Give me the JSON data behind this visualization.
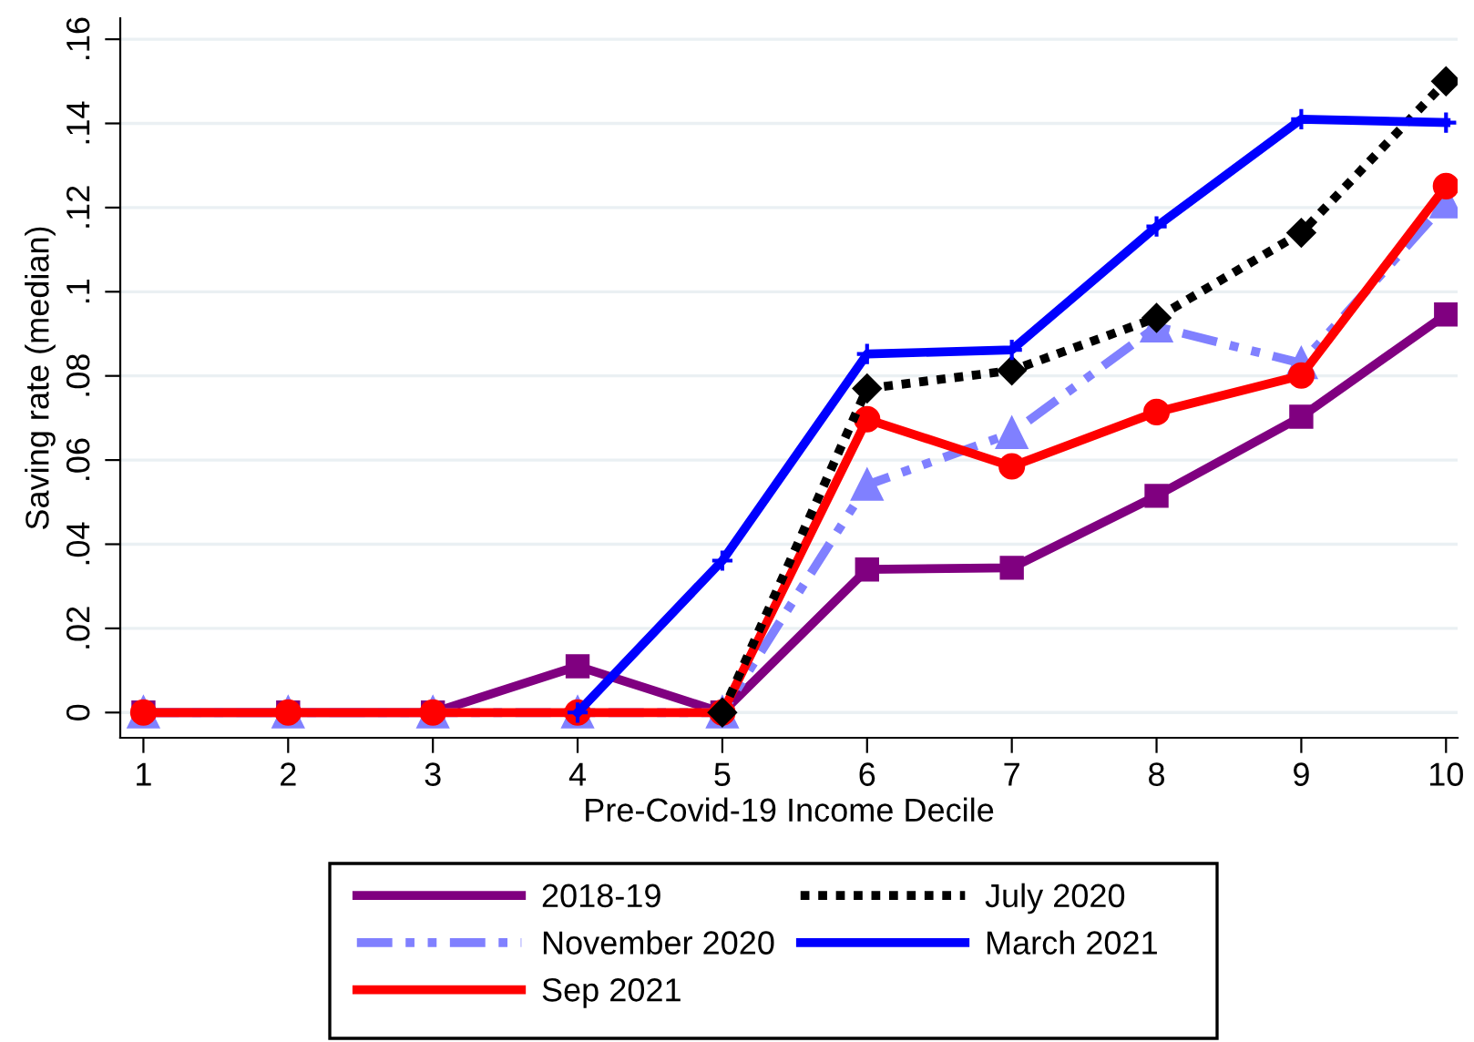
{
  "chart_data": {
    "type": "line",
    "xlabel": "Pre-Covid-19 Income Decile",
    "ylabel": "Saving rate (median)",
    "x": [
      1,
      2,
      3,
      4,
      5,
      6,
      7,
      8,
      9,
      10
    ],
    "series": [
      {
        "name": "2018-19",
        "color": "#800080",
        "marker": "square",
        "line_style": "solid",
        "values": [
          0,
          0,
          0,
          0.011,
          0,
          0.034,
          0.0344,
          0.0515,
          0.0703,
          0.0946
        ]
      },
      {
        "name": "November 2020",
        "color": "#8080ff",
        "marker": "triangle",
        "line_style": "dashdot",
        "values": [
          0,
          0,
          0,
          0,
          0,
          0.0541,
          0.0664,
          0.0917,
          0.083,
          0.1212
        ]
      },
      {
        "name": "Sep 2021",
        "color": "#ff0000",
        "marker": "circle",
        "line_style": "solid",
        "values": [
          0,
          0,
          0,
          0,
          0,
          0.0697,
          0.0585,
          0.0714,
          0.0801,
          0.1251
        ]
      },
      {
        "name": "July 2020",
        "color": "#000000",
        "marker": "diamond",
        "line_style": "dotted",
        "values": [
          null,
          null,
          null,
          null,
          0,
          0.077,
          0.0813,
          0.0938,
          0.114,
          0.15
        ]
      },
      {
        "name": "March 2021",
        "color": "#0000ff",
        "marker": "cross",
        "line_style": "solid",
        "values": [
          null,
          null,
          null,
          0,
          0.0361,
          0.0852,
          0.0862,
          0.1155,
          0.141,
          0.1402
        ]
      }
    ],
    "xlim": [
      0.84,
      10.08
    ],
    "ylim": [
      -0.006,
      0.165
    ],
    "xticks": [
      1,
      2,
      3,
      4,
      5,
      6,
      7,
      8,
      9,
      10
    ],
    "yticks": [
      {
        "value": 0,
        "label": "0"
      },
      {
        "value": 0.02,
        "label": ".02"
      },
      {
        "value": 0.04,
        "label": ".04"
      },
      {
        "value": 0.06,
        "label": ".06"
      },
      {
        "value": 0.08,
        "label": ".08"
      },
      {
        "value": 0.1,
        "label": ".1"
      },
      {
        "value": 0.12,
        "label": ".12"
      },
      {
        "value": 0.14,
        "label": ".14"
      },
      {
        "value": 0.16,
        "label": ".16"
      }
    ],
    "grid": "y",
    "legend": "bottom"
  }
}
